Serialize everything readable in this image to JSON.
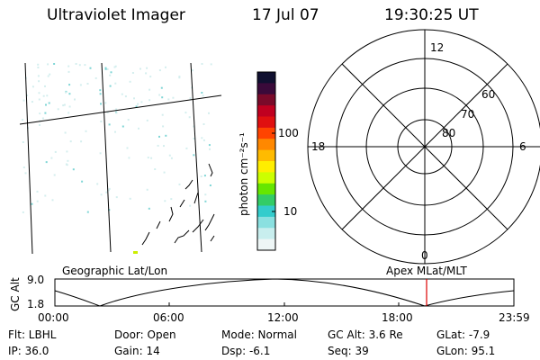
{
  "header": {
    "instrument": "Ultraviolet Imager",
    "date": "17 Jul 07",
    "time": "19:30:25 UT"
  },
  "geo_panel": {
    "label": "Geographic Lat/Lon",
    "dot_color": "#7fd6d6"
  },
  "colorbar": {
    "unit_label": "photon cm⁻²s⁻¹",
    "ticks": [
      "100",
      "10"
    ],
    "colors": [
      "#101030",
      "#3a0a3a",
      "#7a0a2a",
      "#c00020",
      "#e01010",
      "#ff4400",
      "#ff8800",
      "#ffbb00",
      "#ffee00",
      "#ccff00",
      "#66e600",
      "#33cc66",
      "#33cccc",
      "#8ae0e0",
      "#c8eeee",
      "#eef6f6"
    ]
  },
  "polar_panel": {
    "label": "Apex  MLat/MLT",
    "mlt_labels": {
      "top": "12",
      "left": "18",
      "right": "6",
      "bottom": "0"
    },
    "lat_labels": [
      "60",
      "70",
      "80"
    ]
  },
  "altitude_plot": {
    "ylabel": "GC Alt",
    "ymax_label": "9.0",
    "ymin_label": "1.8",
    "xticks": [
      "00:00",
      "06:00",
      "12:00",
      "18:00",
      "23:59"
    ],
    "marker_color": "#dd0000"
  },
  "status": {
    "flt": "Flt: LBHL",
    "ip": "IP: 36.0",
    "door": "Door: Open",
    "gain": "Gain: 14",
    "mode": "Mode: Normal",
    "dsp": "Dsp:    -6.1",
    "gc_alt": "GC Alt: 3.6 Re",
    "seq": "Seq: 39",
    "glat": "GLat:    -7.9",
    "glon": "GLon:  95.1"
  }
}
